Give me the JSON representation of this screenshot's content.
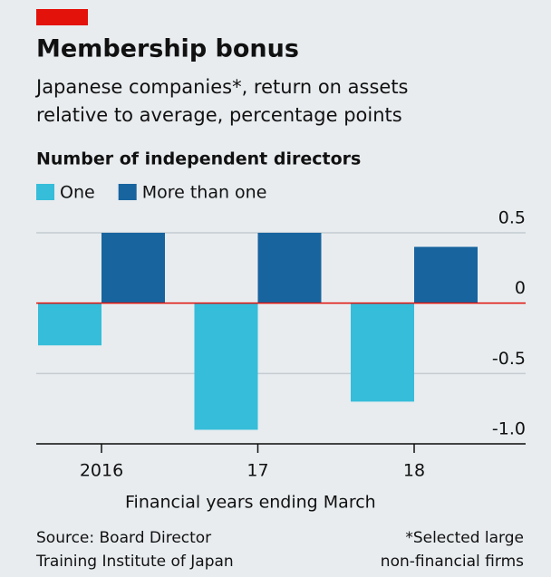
{
  "chart_data": {
    "type": "bar",
    "title": "Membership bonus",
    "subtitle": [
      "Japanese companies*, return on assets",
      "relative to average, percentage points"
    ],
    "legend_title": "Number of independent directors",
    "categories": [
      "2016",
      "17",
      "18"
    ],
    "series": [
      {
        "name": "One",
        "color": "#36bdd9",
        "values": [
          -0.3,
          -0.9,
          -0.7
        ]
      },
      {
        "name": "More than one",
        "color": "#17649f",
        "values": [
          0.5,
          0.5,
          0.4
        ]
      }
    ],
    "ylim": [
      -1,
      0.5
    ],
    "yticks": [
      {
        "value": -1,
        "label": "-1.0"
      },
      -0.5,
      0,
      0.5
    ],
    "grid": true,
    "xlabel": "Financial years ending March",
    "source": [
      "Source: Board Director",
      "Training Institute of Japan"
    ],
    "note": [
      "*Selected large",
      "non-financial firms"
    ]
  }
}
